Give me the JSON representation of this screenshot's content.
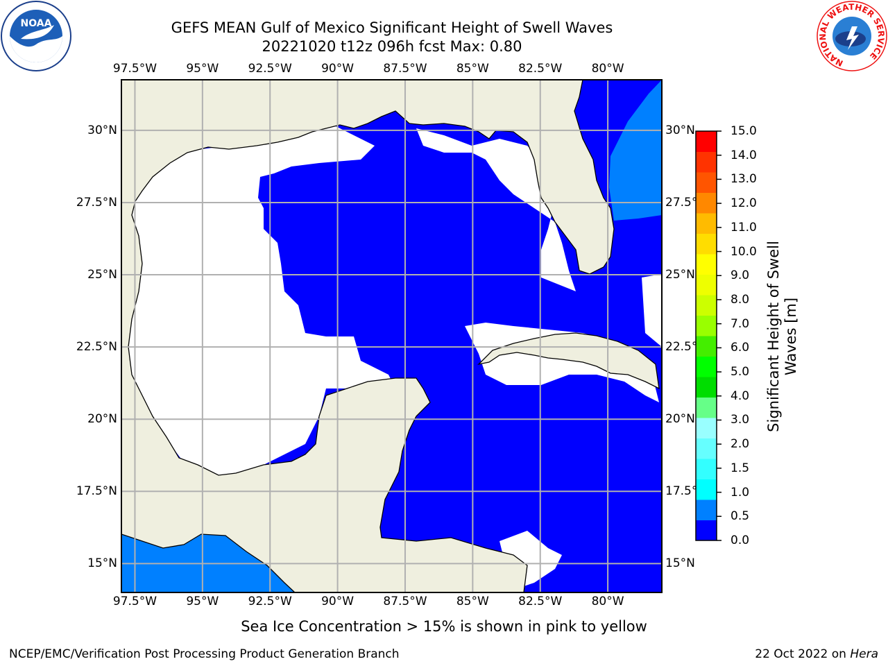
{
  "title": {
    "line1": "GEFS MEAN Gulf of Mexico Significant Height of Swell Waves",
    "line2": "20221020 t12z 096h fcst   Max: 0.80"
  },
  "map": {
    "lon_range": [
      -98,
      -78
    ],
    "lat_range": [
      14,
      31.75
    ],
    "lon_ticks": [
      "97.5°W",
      "95°W",
      "92.5°W",
      "90°W",
      "87.5°W",
      "85°W",
      "82.5°W",
      "80°W"
    ],
    "lat_ticks": [
      "30°N",
      "27.5°N",
      "25°N",
      "22.5°N",
      "20°N",
      "17.5°N",
      "15°N"
    ],
    "right_lat_ticks": [
      "30°N",
      "27.5°",
      "25°N",
      "22.5°",
      "20°N",
      "17.5°",
      "15°N"
    ],
    "colors": {
      "land": "#efefdf",
      "ocean_calm": "#0000ff",
      "ocean_swell": "#0080ff",
      "coastline": "#000000",
      "grid": "#b0b0b0"
    }
  },
  "colorbar": {
    "label_line1": "Significant Height of Swell",
    "label_line2": "Waves [m]",
    "ticks": [
      "15.0",
      "14.0",
      "13.0",
      "12.0",
      "11.0",
      "10.0",
      "9.0",
      "8.0",
      "7.0",
      "6.0",
      "5.0",
      "4.0",
      "3.0",
      "2.0",
      "1.5",
      "1.0",
      "0.5",
      "0.0"
    ],
    "colors_bottom_to_top": [
      "#0000ff",
      "#0080ff",
      "#00ffff",
      "#33ffff",
      "#66ffff",
      "#99ffff",
      "#66ff88",
      "#00dd00",
      "#00ff00",
      "#44ee00",
      "#99ff00",
      "#ccff00",
      "#eeff00",
      "#ffff00",
      "#ffdd00",
      "#ffbb00",
      "#ff8800",
      "#ff5500",
      "#ff3300",
      "#ff0000"
    ]
  },
  "note": "Sea Ice Concentration > 15% is shown in pink to yellow",
  "footer": {
    "left": "NCEP/EMC/Verification Post Processing Product Generation Branch",
    "date": "22 Oct 2022 on ",
    "machine": "Hera"
  },
  "logos": {
    "left": "noaa-logo",
    "right": "national-weather-service-logo",
    "right_text": "NATIONAL WEATHER SERVICE"
  }
}
